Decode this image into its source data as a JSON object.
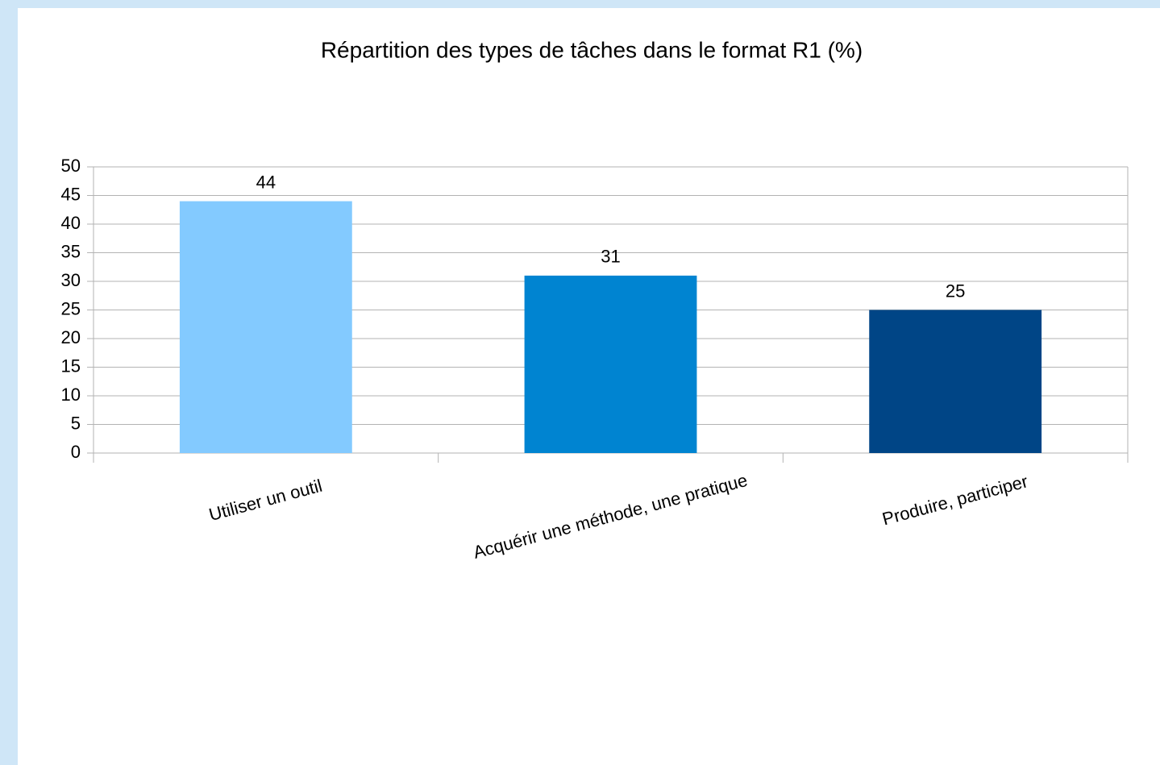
{
  "chart_data": {
    "type": "bar",
    "title": "Répartition des types de tâches dans le format R1 (%)",
    "categories": [
      "Utiliser un outil",
      "Acquérir une méthode, une pratique",
      "Produire, participer"
    ],
    "values": [
      44,
      31,
      25
    ],
    "colors": [
      "#83caff",
      "#0084d1",
      "#004586"
    ],
    "ylim": [
      0,
      50
    ],
    "yticks": [
      0,
      5,
      10,
      15,
      20,
      25,
      30,
      35,
      40,
      45,
      50
    ],
    "grid": true
  }
}
